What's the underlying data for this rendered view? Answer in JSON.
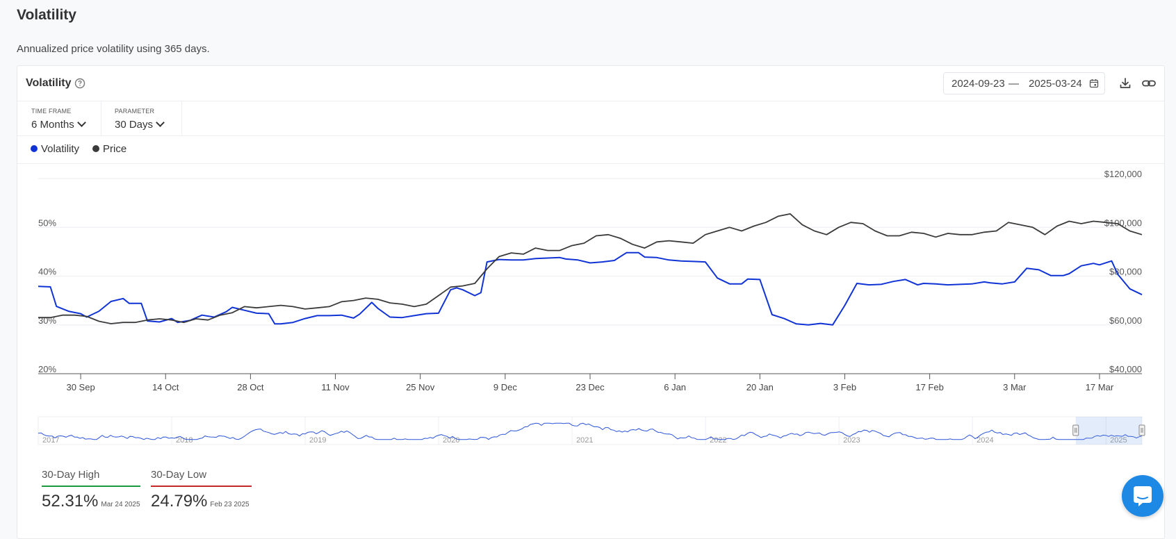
{
  "page": {
    "title": "Volatility",
    "description": "Annualized price volatility using 365 days."
  },
  "card": {
    "title": "Volatility",
    "date_from": "2024-09-23",
    "date_sep": "—",
    "date_to": "2025-03-24"
  },
  "controls": {
    "timeframe": {
      "label": "TIME FRAME",
      "value": "6 Months"
    },
    "parameter": {
      "label": "PARAMETER",
      "value": "30 Days"
    }
  },
  "legend": [
    {
      "label": "Volatility",
      "color": "#1033d6"
    },
    {
      "label": "Price",
      "color": "#3a3a3a"
    }
  ],
  "chart_data": {
    "type": "line",
    "x_tick_labels": [
      "30 Sep",
      "14 Oct",
      "28 Oct",
      "11 Nov",
      "25 Nov",
      "9 Dec",
      "23 Dec",
      "6 Jan",
      "20 Jan",
      "3 Feb",
      "17 Feb",
      "3 Mar",
      "17 Mar"
    ],
    "x_range": [
      "2024-09-23",
      "2025-03-24"
    ],
    "y_left": {
      "ticks": [
        "20%",
        "30%",
        "40%",
        "50%"
      ],
      "range": [
        20,
        60
      ]
    },
    "y_right": {
      "ticks": [
        "$40,000",
        "$60,000",
        "$80,000",
        "$100,000",
        "$120,000"
      ],
      "range": [
        40000,
        120000
      ]
    },
    "series": [
      {
        "name": "Volatility",
        "axis": "left",
        "color": "#1033d6",
        "points": [
          [
            "2024-09-23",
            37.9
          ],
          [
            "2024-09-25",
            37.8
          ],
          [
            "2024-09-26",
            33.8
          ],
          [
            "2024-09-28",
            32.8
          ],
          [
            "2024-09-30",
            32.3
          ],
          [
            "2024-10-01",
            31.6
          ],
          [
            "2024-10-03",
            32.8
          ],
          [
            "2024-10-05",
            34.8
          ],
          [
            "2024-10-07",
            35.4
          ],
          [
            "2024-10-08",
            34.4
          ],
          [
            "2024-10-10",
            34.4
          ],
          [
            "2024-10-11",
            30.8
          ],
          [
            "2024-10-13",
            30.6
          ],
          [
            "2024-10-15",
            31.3
          ],
          [
            "2024-10-16",
            30.5
          ],
          [
            "2024-10-18",
            30.9
          ],
          [
            "2024-10-20",
            32.0
          ],
          [
            "2024-10-22",
            31.6
          ],
          [
            "2024-10-24",
            32.7
          ],
          [
            "2024-10-25",
            33.6
          ],
          [
            "2024-10-27",
            33.0
          ],
          [
            "2024-10-29",
            32.4
          ],
          [
            "2024-10-31",
            32.3
          ],
          [
            "2024-11-01",
            30.2
          ],
          [
            "2024-11-02",
            30.2
          ],
          [
            "2024-11-04",
            30.5
          ],
          [
            "2024-11-06",
            31.3
          ],
          [
            "2024-11-08",
            31.9
          ],
          [
            "2024-11-10",
            31.9
          ],
          [
            "2024-11-12",
            32.0
          ],
          [
            "2024-11-14",
            31.4
          ],
          [
            "2024-11-15",
            32.2
          ],
          [
            "2024-11-17",
            34.6
          ],
          [
            "2024-11-18",
            33.4
          ],
          [
            "2024-11-20",
            31.6
          ],
          [
            "2024-11-22",
            31.5
          ],
          [
            "2024-11-24",
            31.9
          ],
          [
            "2024-11-26",
            32.3
          ],
          [
            "2024-11-28",
            32.4
          ],
          [
            "2024-11-30",
            37.2
          ],
          [
            "2024-12-01",
            37.6
          ],
          [
            "2024-12-02",
            37.2
          ],
          [
            "2024-12-04",
            36.0
          ],
          [
            "2024-12-05",
            36.6
          ],
          [
            "2024-12-06",
            42.9
          ],
          [
            "2024-12-08",
            43.4
          ],
          [
            "2024-12-10",
            43.3
          ],
          [
            "2024-12-12",
            43.3
          ],
          [
            "2024-12-14",
            43.6
          ],
          [
            "2024-12-16",
            43.7
          ],
          [
            "2024-12-18",
            43.8
          ],
          [
            "2024-12-19",
            43.5
          ],
          [
            "2024-12-21",
            43.3
          ],
          [
            "2024-12-23",
            42.7
          ],
          [
            "2024-12-25",
            42.9
          ],
          [
            "2024-12-27",
            43.2
          ],
          [
            "2024-12-29",
            44.8
          ],
          [
            "2024-12-31",
            44.8
          ],
          [
            "2025-01-01",
            43.9
          ],
          [
            "2025-01-03",
            43.8
          ],
          [
            "2025-01-05",
            43.3
          ],
          [
            "2025-01-07",
            43.1
          ],
          [
            "2025-01-09",
            43.0
          ],
          [
            "2025-01-11",
            42.9
          ],
          [
            "2025-01-13",
            39.6
          ],
          [
            "2025-01-15",
            38.4
          ],
          [
            "2025-01-17",
            38.4
          ],
          [
            "2025-01-18",
            39.4
          ],
          [
            "2025-01-20",
            39.3
          ],
          [
            "2025-01-22",
            32.1
          ],
          [
            "2025-01-24",
            31.3
          ],
          [
            "2025-01-26",
            30.2
          ],
          [
            "2025-01-28",
            30.0
          ],
          [
            "2025-01-30",
            30.3
          ],
          [
            "2025-02-01",
            30.0
          ],
          [
            "2025-02-03",
            34.0
          ],
          [
            "2025-02-05",
            38.5
          ],
          [
            "2025-02-07",
            38.2
          ],
          [
            "2025-02-09",
            38.3
          ],
          [
            "2025-02-11",
            38.9
          ],
          [
            "2025-02-13",
            39.3
          ],
          [
            "2025-02-15",
            38.2
          ],
          [
            "2025-02-16",
            38.5
          ],
          [
            "2025-02-18",
            38.4
          ],
          [
            "2025-02-20",
            38.2
          ],
          [
            "2025-02-22",
            38.3
          ],
          [
            "2025-02-24",
            38.4
          ],
          [
            "2025-02-26",
            38.8
          ],
          [
            "2025-02-27",
            38.6
          ],
          [
            "2025-03-01",
            38.4
          ],
          [
            "2025-03-03",
            38.8
          ],
          [
            "2025-03-05",
            41.6
          ],
          [
            "2025-03-07",
            41.3
          ],
          [
            "2025-03-09",
            40.1
          ],
          [
            "2025-03-11",
            40.1
          ],
          [
            "2025-03-12",
            40.5
          ],
          [
            "2025-03-14",
            42.1
          ],
          [
            "2025-03-16",
            42.6
          ],
          [
            "2025-03-17",
            42.3
          ],
          [
            "2025-03-19",
            43.1
          ],
          [
            "2025-03-20",
            40.4
          ],
          [
            "2025-03-22",
            37.4
          ],
          [
            "2025-03-24",
            36.2
          ]
        ]
      },
      {
        "name": "Price",
        "axis": "right",
        "color": "#3a3a3a",
        "points": [
          [
            "2024-09-23",
            63000
          ],
          [
            "2024-09-25",
            63000
          ],
          [
            "2024-09-27",
            64000
          ],
          [
            "2024-09-29",
            64000
          ],
          [
            "2024-10-01",
            63500
          ],
          [
            "2024-10-03",
            61500
          ],
          [
            "2024-10-05",
            60500
          ],
          [
            "2024-10-07",
            61000
          ],
          [
            "2024-10-09",
            61000
          ],
          [
            "2024-10-11",
            62000
          ],
          [
            "2024-10-13",
            62500
          ],
          [
            "2024-10-15",
            62000
          ],
          [
            "2024-10-17",
            61000
          ],
          [
            "2024-10-19",
            62500
          ],
          [
            "2024-10-21",
            62000
          ],
          [
            "2024-10-23",
            64000
          ],
          [
            "2024-10-25",
            65000
          ],
          [
            "2024-10-27",
            67500
          ],
          [
            "2024-10-29",
            67000
          ],
          [
            "2024-10-31",
            67500
          ],
          [
            "2024-11-02",
            68000
          ],
          [
            "2024-11-04",
            67500
          ],
          [
            "2024-11-06",
            66500
          ],
          [
            "2024-11-08",
            67000
          ],
          [
            "2024-11-10",
            67500
          ],
          [
            "2024-11-12",
            69500
          ],
          [
            "2024-11-14",
            70000
          ],
          [
            "2024-11-16",
            71000
          ],
          [
            "2024-11-18",
            70500
          ],
          [
            "2024-11-20",
            69000
          ],
          [
            "2024-11-22",
            68500
          ],
          [
            "2024-11-24",
            67500
          ],
          [
            "2024-11-26",
            68500
          ],
          [
            "2024-11-28",
            72000
          ],
          [
            "2024-11-30",
            75500
          ],
          [
            "2024-12-02",
            76000
          ],
          [
            "2024-12-04",
            77000
          ],
          [
            "2024-12-06",
            83000
          ],
          [
            "2024-12-08",
            88000
          ],
          [
            "2024-12-10",
            89500
          ],
          [
            "2024-12-12",
            89000
          ],
          [
            "2024-12-14",
            91500
          ],
          [
            "2024-12-16",
            90500
          ],
          [
            "2024-12-18",
            90500
          ],
          [
            "2024-12-20",
            92500
          ],
          [
            "2024-12-22",
            93500
          ],
          [
            "2024-12-24",
            96500
          ],
          [
            "2024-12-26",
            97000
          ],
          [
            "2024-12-28",
            95500
          ],
          [
            "2024-12-30",
            93000
          ],
          [
            "2025-01-01",
            91500
          ],
          [
            "2025-01-03",
            94000
          ],
          [
            "2025-01-05",
            94500
          ],
          [
            "2025-01-07",
            94000
          ],
          [
            "2025-01-09",
            93500
          ],
          [
            "2025-01-11",
            97000
          ],
          [
            "2025-01-13",
            98500
          ],
          [
            "2025-01-15",
            100000
          ],
          [
            "2025-01-17",
            98500
          ],
          [
            "2025-01-19",
            100500
          ],
          [
            "2025-01-21",
            102000
          ],
          [
            "2025-01-23",
            104500
          ],
          [
            "2025-01-25",
            105500
          ],
          [
            "2025-01-27",
            101000
          ],
          [
            "2025-01-29",
            98500
          ],
          [
            "2025-01-31",
            97000
          ],
          [
            "2025-02-02",
            100000
          ],
          [
            "2025-02-04",
            102000
          ],
          [
            "2025-02-06",
            101500
          ],
          [
            "2025-02-08",
            98500
          ],
          [
            "2025-02-10",
            96500
          ],
          [
            "2025-02-12",
            96500
          ],
          [
            "2025-02-14",
            98000
          ],
          [
            "2025-02-16",
            97500
          ],
          [
            "2025-02-18",
            96000
          ],
          [
            "2025-02-20",
            97500
          ],
          [
            "2025-02-22",
            97000
          ],
          [
            "2025-02-24",
            97000
          ],
          [
            "2025-02-26",
            98000
          ],
          [
            "2025-02-28",
            98500
          ],
          [
            "2025-03-02",
            102000
          ],
          [
            "2025-03-04",
            101000
          ],
          [
            "2025-03-06",
            100000
          ],
          [
            "2025-03-08",
            97000
          ],
          [
            "2025-03-10",
            100500
          ],
          [
            "2025-03-12",
            102500
          ],
          [
            "2025-03-14",
            101500
          ],
          [
            "2025-03-16",
            102500
          ],
          [
            "2025-03-18",
            102000
          ],
          [
            "2025-03-20",
            101500
          ],
          [
            "2025-03-22",
            98500
          ],
          [
            "2025-03-24",
            97000
          ]
        ]
      }
    ]
  },
  "navigator": {
    "years": [
      "2017",
      "2018",
      "2019",
      "2020",
      "2021",
      "2022",
      "2023",
      "2024",
      "2025"
    ],
    "selection": [
      0.94,
      1.0
    ]
  },
  "stats": {
    "high": {
      "label": "30-Day High",
      "value": "52.31%",
      "date": "Mar 24 2025",
      "color": "#1a9a3c"
    },
    "low": {
      "label": "30-Day Low",
      "value": "24.79%",
      "date": "Feb 23 2025",
      "color": "#c62828"
    }
  }
}
